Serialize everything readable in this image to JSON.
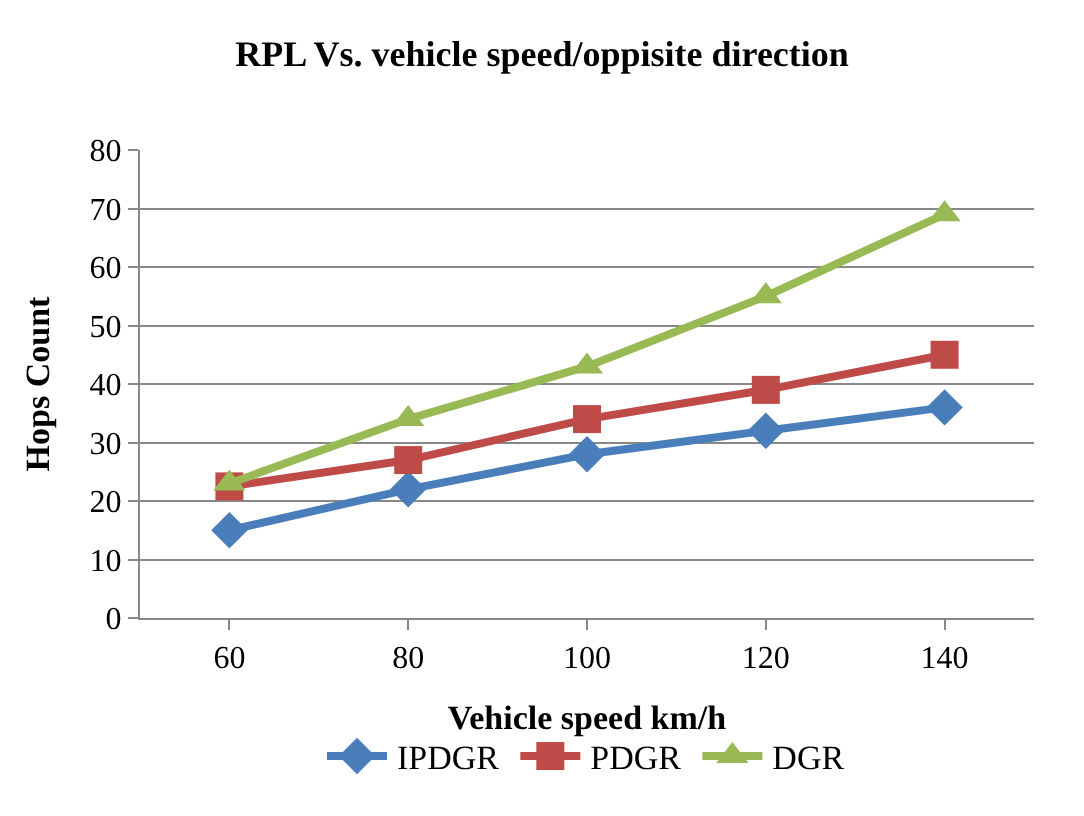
{
  "chart_data": {
    "type": "line",
    "title": "RPL Vs. vehicle speed/oppisite direction",
    "xlabel": "Vehicle speed km/h",
    "ylabel": "Hops Count",
    "categories": [
      "60",
      "80",
      "100",
      "120",
      "140"
    ],
    "series": [
      {
        "name": "IPDGR",
        "color": "#4a7ebb",
        "marker": "diamond",
        "values": [
          15,
          22,
          28,
          32,
          36
        ]
      },
      {
        "name": "PDGR",
        "color": "#be4b48",
        "marker": "square",
        "values": [
          22.5,
          27,
          34,
          39,
          45
        ]
      },
      {
        "name": "DGR",
        "color": "#98b954",
        "marker": "triangle",
        "values": [
          23,
          34,
          43,
          55,
          69
        ]
      }
    ],
    "ylim": [
      0,
      80
    ],
    "yticks": [
      0,
      10,
      20,
      30,
      40,
      50,
      60,
      70,
      80
    ],
    "grid": "y",
    "legend": "bottom",
    "line_style": "solid"
  }
}
